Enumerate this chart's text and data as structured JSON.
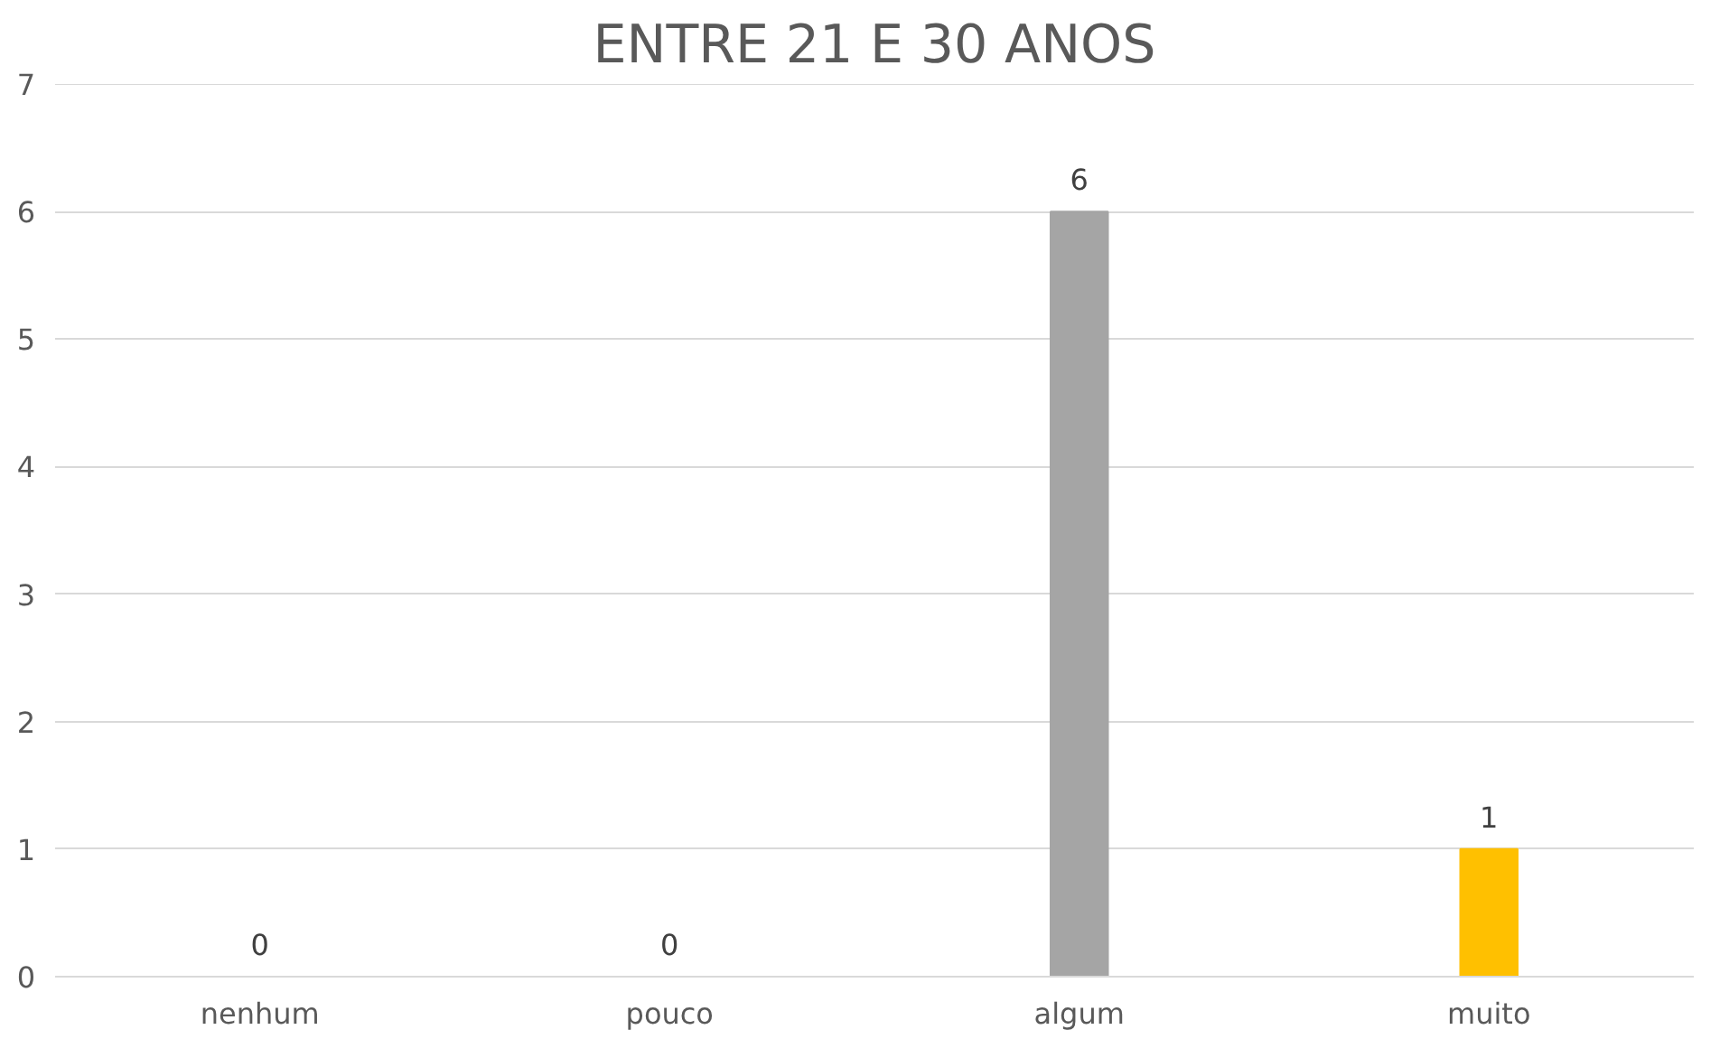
{
  "chart_data": {
    "type": "bar",
    "title": "ENTRE 21 E 30 ANOS",
    "categories": [
      "nenhum",
      "pouco",
      "algum",
      "muito"
    ],
    "values": [
      0,
      0,
      6,
      1
    ],
    "colors": [
      "#4472c4",
      "#ed7d31",
      "#a5a5a5",
      "#ffc000"
    ],
    "ylim": [
      0,
      7
    ],
    "yticks": [
      0,
      1,
      2,
      3,
      4,
      5,
      6,
      7
    ],
    "grid": "y",
    "data_labels": true
  }
}
